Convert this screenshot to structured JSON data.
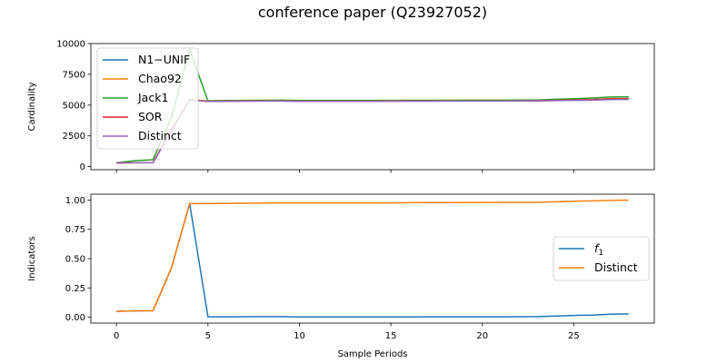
{
  "title": "conference paper (Q23927052)",
  "chart_data": [
    {
      "type": "line",
      "ylabel": "Cardinality",
      "xlim": [
        -1.4,
        29.4
      ],
      "ylim": [
        -250,
        10000
      ],
      "xticks": [
        0,
        5,
        10,
        15,
        20,
        25
      ],
      "yticks": [
        0,
        2500,
        5000,
        7500,
        10000
      ],
      "show_xtick_labels": false,
      "legend": "upper-left",
      "x": [
        0,
        1,
        2,
        3,
        4,
        5,
        6,
        7,
        8,
        9,
        10,
        11,
        12,
        13,
        14,
        15,
        16,
        17,
        18,
        19,
        20,
        21,
        22,
        23,
        24,
        25,
        26,
        27,
        28
      ],
      "series": [
        {
          "name": "N1−UNIF",
          "color": "#1f77b4",
          "values": [
            300,
            320,
            330,
            3000,
            5450,
            5330,
            5340,
            5350,
            5355,
            5360,
            5340,
            5340,
            5340,
            5340,
            5340,
            5345,
            5350,
            5350,
            5355,
            5360,
            5360,
            5360,
            5365,
            5370,
            5400,
            5430,
            5460,
            5520,
            5530
          ]
        },
        {
          "name": "Chao92",
          "color": "#ff7f0e",
          "values": [
            300,
            320,
            330,
            3000,
            5450,
            5330,
            5340,
            5350,
            5355,
            5360,
            5340,
            5340,
            5340,
            5340,
            5340,
            5345,
            5350,
            5350,
            5355,
            5360,
            5360,
            5360,
            5365,
            5370,
            5400,
            5430,
            5460,
            5520,
            5530
          ]
        },
        {
          "name": "Jack1",
          "color": "#2ca02c",
          "values": [
            320,
            480,
            560,
            4000,
            9500,
            5350,
            5370,
            5380,
            5390,
            5400,
            5380,
            5380,
            5380,
            5380,
            5380,
            5385,
            5390,
            5390,
            5395,
            5400,
            5400,
            5400,
            5405,
            5410,
            5470,
            5520,
            5580,
            5660,
            5680
          ]
        },
        {
          "name": "SOR",
          "color": "#d62728",
          "values": [
            300,
            310,
            320,
            2950,
            5420,
            5310,
            5320,
            5330,
            5335,
            5340,
            5320,
            5320,
            5320,
            5320,
            5320,
            5325,
            5330,
            5330,
            5335,
            5340,
            5340,
            5340,
            5345,
            5350,
            5380,
            5410,
            5440,
            5500,
            5510
          ]
        },
        {
          "name": "Distinct",
          "color": "#9467bd",
          "values": [
            300,
            310,
            320,
            2900,
            5400,
            5300,
            5310,
            5320,
            5325,
            5330,
            5310,
            5310,
            5310,
            5310,
            5310,
            5315,
            5320,
            5320,
            5325,
            5330,
            5330,
            5330,
            5335,
            5340,
            5360,
            5380,
            5400,
            5450,
            5460
          ]
        }
      ]
    },
    {
      "type": "line",
      "xlabel": "Sample Periods",
      "ylabel": "Indicators",
      "xlim": [
        -1.4,
        29.4
      ],
      "ylim": [
        -0.05,
        1.05
      ],
      "xticks": [
        0,
        5,
        10,
        15,
        20,
        25
      ],
      "yticks": [
        0.0,
        0.25,
        0.5,
        0.75,
        1.0
      ],
      "show_xtick_labels": true,
      "legend": "center-right",
      "x": [
        0,
        1,
        2,
        3,
        4,
        5,
        6,
        7,
        8,
        9,
        10,
        11,
        12,
        13,
        14,
        15,
        16,
        17,
        18,
        19,
        20,
        21,
        22,
        23,
        24,
        25,
        26,
        27,
        28
      ],
      "series": [
        {
          "name": "f",
          "subscript": "1",
          "color": "#1f77b4",
          "values": [
            0.05,
            0.055,
            0.056,
            0.42,
            0.97,
            0.003,
            0.003,
            0.004,
            0.005,
            0.005,
            0.002,
            0.002,
            0.002,
            0.002,
            0.002,
            0.002,
            0.002,
            0.003,
            0.003,
            0.003,
            0.003,
            0.003,
            0.004,
            0.005,
            0.01,
            0.015,
            0.018,
            0.026,
            0.028
          ]
        },
        {
          "name": "Distinct",
          "color": "#ff7f0e",
          "values": [
            0.05,
            0.055,
            0.056,
            0.42,
            0.97,
            0.971,
            0.972,
            0.973,
            0.974,
            0.975,
            0.975,
            0.975,
            0.975,
            0.975,
            0.975,
            0.976,
            0.977,
            0.978,
            0.978,
            0.979,
            0.979,
            0.98,
            0.98,
            0.981,
            0.985,
            0.99,
            0.993,
            0.998,
            1.0
          ]
        }
      ]
    }
  ]
}
